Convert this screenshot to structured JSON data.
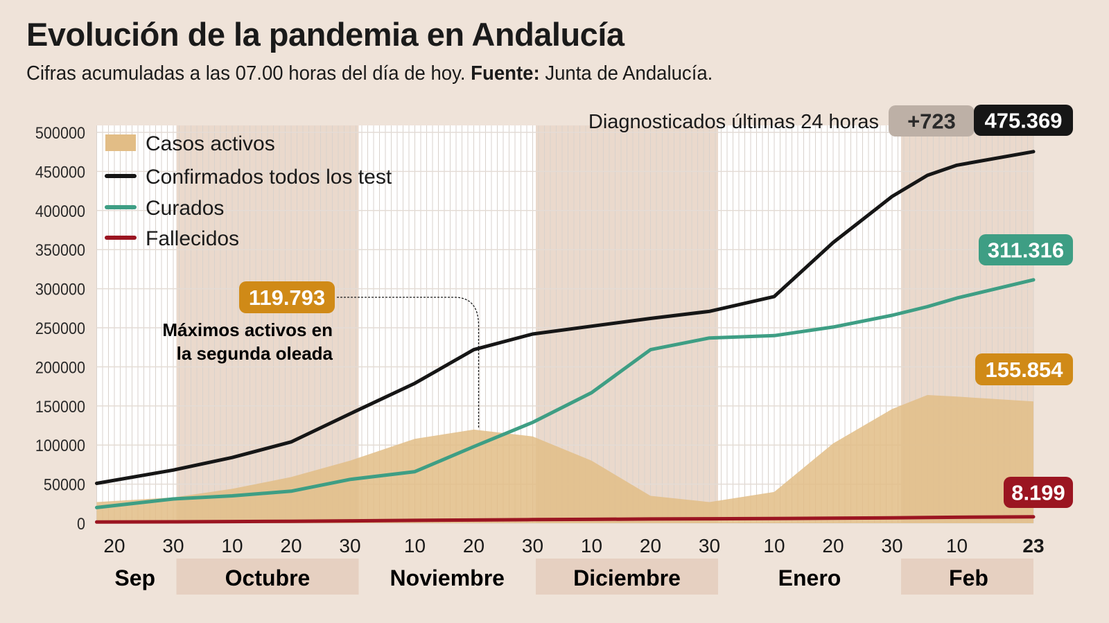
{
  "header": {
    "title": "Evolución de la pandemia en Andalucía",
    "subtitle_prefix": "Cifras acumuladas a las 07.00 horas del día de hoy. ",
    "subtitle_source_label": "Fuente:",
    "subtitle_source": " Junta de Andalucía."
  },
  "chart_data": {
    "type": "line",
    "title": "Evolución de la pandemia en Andalucía",
    "ylim": [
      0,
      500000
    ],
    "yticks": [
      "0",
      "50000",
      "100000",
      "150000",
      "200000",
      "250000",
      "300000",
      "350000",
      "400000",
      "450000",
      "500000"
    ],
    "grid": true,
    "legend_placement": "top-left",
    "x": [
      "2020-09-17",
      "2020-09-30",
      "2020-10-10",
      "2020-10-20",
      "2020-10-30",
      "2020-11-10",
      "2020-11-20",
      "2020-11-30",
      "2020-12-10",
      "2020-12-20",
      "2020-12-30",
      "2021-01-10",
      "2021-01-20",
      "2021-01-30",
      "2021-02-05",
      "2021-02-10",
      "2021-02-23"
    ],
    "xticks": [
      {
        "date": "2020-09-20",
        "label": "20"
      },
      {
        "date": "2020-09-30",
        "label": "30"
      },
      {
        "date": "2020-10-10",
        "label": "10"
      },
      {
        "date": "2020-10-20",
        "label": "20"
      },
      {
        "date": "2020-10-30",
        "label": "30"
      },
      {
        "date": "2020-11-10",
        "label": "10"
      },
      {
        "date": "2020-11-20",
        "label": "20"
      },
      {
        "date": "2020-11-30",
        "label": "30"
      },
      {
        "date": "2020-12-10",
        "label": "10"
      },
      {
        "date": "2020-12-20",
        "label": "20"
      },
      {
        "date": "2020-12-30",
        "label": "30"
      },
      {
        "date": "2021-01-10",
        "label": "10"
      },
      {
        "date": "2021-01-20",
        "label": "20"
      },
      {
        "date": "2021-01-30",
        "label": "30"
      },
      {
        "date": "2021-02-10",
        "label": "10"
      },
      {
        "date": "2021-02-23",
        "label": "23",
        "bold": true
      }
    ],
    "months": [
      {
        "label": "Sep",
        "start": "2020-09-17",
        "end": "2020-09-30",
        "shaded": false
      },
      {
        "label": "Octubre",
        "start": "2020-10-01",
        "end": "2020-10-31",
        "shaded": true
      },
      {
        "label": "Noviembre",
        "start": "2020-11-01",
        "end": "2020-11-30",
        "shaded": false
      },
      {
        "label": "Diciembre",
        "start": "2020-12-01",
        "end": "2020-12-31",
        "shaded": true
      },
      {
        "label": "Enero",
        "start": "2021-01-01",
        "end": "2021-01-31",
        "shaded": false
      },
      {
        "label": "Feb",
        "start": "2021-02-01",
        "end": "2021-02-23",
        "shaded": true
      }
    ],
    "series": [
      {
        "name": "Casos activos",
        "kind": "area",
        "color": "#e2bd86",
        "values": [
          27000,
          33000,
          44000,
          59000,
          80000,
          108000,
          119793,
          111000,
          80000,
          35000,
          27000,
          40000,
          102000,
          146000,
          164000,
          162000,
          155854
        ]
      },
      {
        "name": "Confirmados todos los test",
        "kind": "line",
        "color": "#161616",
        "values": [
          51000,
          68000,
          84000,
          104000,
          140000,
          179000,
          222000,
          242000,
          252000,
          262000,
          271000,
          290000,
          359000,
          418000,
          445000,
          458000,
          475369
        ]
      },
      {
        "name": "Curados",
        "kind": "line",
        "color": "#3e9e84",
        "values": [
          20000,
          31000,
          35000,
          41000,
          56000,
          66000,
          98000,
          129000,
          167000,
          222000,
          237000,
          240000,
          251000,
          266000,
          277000,
          288000,
          311316
        ]
      },
      {
        "name": "Fallecidos",
        "kind": "line",
        "color": "#9b1521",
        "values": [
          1500,
          1800,
          2100,
          2500,
          3000,
          3600,
          4100,
          4600,
          5000,
          5400,
          5700,
          6000,
          6400,
          6900,
          7300,
          7600,
          8199
        ]
      }
    ],
    "annotations": {
      "peak_value": "119.793",
      "peak_date": "2020-11-20",
      "peak_text_line1": "Máximos activos en",
      "peak_text_line2": "la segunda oleada",
      "last24_label": "Diagnosticados últimas 24 horas",
      "last24_value": "+723",
      "confirmed_total": "475.369",
      "recovered_total": "311.316",
      "active_total": "155.854",
      "deaths_total": "8.199"
    },
    "colors": {
      "background": "#efe3d9",
      "band": "#ead9cc",
      "active": "#e2bd86",
      "active_label": "#d08a17",
      "confirmed": "#161616",
      "recovered": "#3e9e84",
      "deaths": "#9b1521",
      "delta_badge": "#bdb0a6"
    }
  }
}
